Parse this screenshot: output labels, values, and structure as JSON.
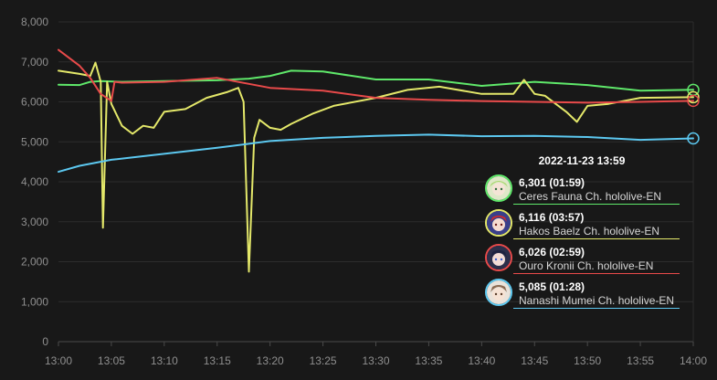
{
  "chart_data": {
    "type": "line",
    "title": "",
    "xlabel": "",
    "ylabel": "",
    "ylim": [
      0,
      8000
    ],
    "xlim": [
      "13:00",
      "14:00"
    ],
    "grid": "horizontal",
    "y_ticks": [
      "0",
      "1,000",
      "2,000",
      "3,000",
      "4,000",
      "5,000",
      "6,000",
      "7,000",
      "8,000"
    ],
    "x_ticks": [
      "13:00",
      "13:05",
      "13:10",
      "13:15",
      "13:20",
      "13:25",
      "13:30",
      "13:35",
      "13:40",
      "13:45",
      "13:50",
      "13:55",
      "14:00"
    ],
    "series": [
      {
        "name": "Ceres Fauna Ch. hololive-EN",
        "color": "#5fe86a",
        "x": [
          "13:00",
          "13:02",
          "13:03",
          "13:04",
          "13:06",
          "13:10",
          "13:15",
          "13:18",
          "13:20",
          "13:22",
          "13:25",
          "13:30",
          "13:35",
          "13:40",
          "13:45",
          "13:50",
          "13:55",
          "14:00"
        ],
        "values": [
          6430,
          6420,
          6500,
          6520,
          6500,
          6520,
          6540,
          6580,
          6650,
          6780,
          6760,
          6560,
          6560,
          6400,
          6500,
          6420,
          6280,
          6301
        ]
      },
      {
        "name": "Hakos Baelz Ch. hololive-EN",
        "color": "#e4e86a",
        "x": [
          "13:00",
          "13:02",
          "13:03",
          "13:03.5",
          "13:04",
          "13:04.2",
          "13:04.6",
          "13:05",
          "13:06",
          "13:07",
          "13:08",
          "13:09",
          "13:10",
          "13:12",
          "13:14",
          "13:16",
          "13:17",
          "13:17.5",
          "13:18",
          "13:18.5",
          "13:19",
          "13:20",
          "13:21",
          "13:22",
          "13:24",
          "13:26",
          "13:30",
          "13:33",
          "13:36",
          "13:40",
          "13:43",
          "13:44",
          "13:45",
          "13:46",
          "13:48",
          "13:49",
          "13:50",
          "13:52",
          "13:55",
          "14:00"
        ],
        "values": [
          6780,
          6700,
          6650,
          6980,
          6500,
          2850,
          6500,
          5950,
          5400,
          5200,
          5400,
          5350,
          5750,
          5820,
          6100,
          6250,
          6350,
          6000,
          1750,
          5100,
          5550,
          5350,
          5300,
          5450,
          5700,
          5900,
          6100,
          6300,
          6380,
          6200,
          6200,
          6550,
          6200,
          6150,
          5750,
          5500,
          5900,
          5950,
          6100,
          6116
        ]
      },
      {
        "name": "Ouro Kronii Ch. hololive-EN",
        "color": "#e84a4a",
        "x": [
          "13:00",
          "13:02",
          "13:03",
          "13:04",
          "13:05",
          "13:05.3",
          "13:06",
          "13:10",
          "13:15",
          "13:18",
          "13:20",
          "13:25",
          "13:30",
          "13:35",
          "13:40",
          "13:45",
          "13:50",
          "13:55",
          "14:00"
        ],
        "values": [
          7300,
          6900,
          6600,
          6200,
          6020,
          6500,
          6480,
          6500,
          6600,
          6450,
          6350,
          6280,
          6100,
          6050,
          6020,
          6000,
          5980,
          6000,
          6026
        ]
      },
      {
        "name": "Nanashi Mumei Ch. hololive-EN",
        "color": "#5cc8f0",
        "x": [
          "13:00",
          "13:02",
          "13:05",
          "13:10",
          "13:15",
          "13:18",
          "13:20",
          "13:25",
          "13:30",
          "13:35",
          "13:40",
          "13:45",
          "13:50",
          "13:55",
          "14:00"
        ],
        "values": [
          4250,
          4400,
          4550,
          4700,
          4850,
          4950,
          5020,
          5100,
          5150,
          5180,
          5140,
          5150,
          5120,
          5050,
          5085
        ]
      }
    ],
    "tooltip": {
      "title": "2022-11-23 13:59",
      "entries": [
        {
          "value_text": "6,301 (01:59)",
          "name": "Ceres Fauna Ch. hololive-EN",
          "color": "#5fe86a",
          "avatar": "ceres-fauna-avatar"
        },
        {
          "value_text": "6,116 (03:57)",
          "name": "Hakos Baelz Ch. hololive-EN",
          "color": "#e4e86a",
          "avatar": "hakos-baelz-avatar"
        },
        {
          "value_text": "6,026 (02:59)",
          "name": "Ouro Kronii Ch. hololive-EN",
          "color": "#e84a4a",
          "avatar": "ouro-kronii-avatar"
        },
        {
          "value_text": "5,085 (01:28)",
          "name": "Nanashi Mumei Ch. hololive-EN",
          "color": "#5cc8f0",
          "avatar": "nanashi-mumei-avatar"
        }
      ]
    }
  }
}
